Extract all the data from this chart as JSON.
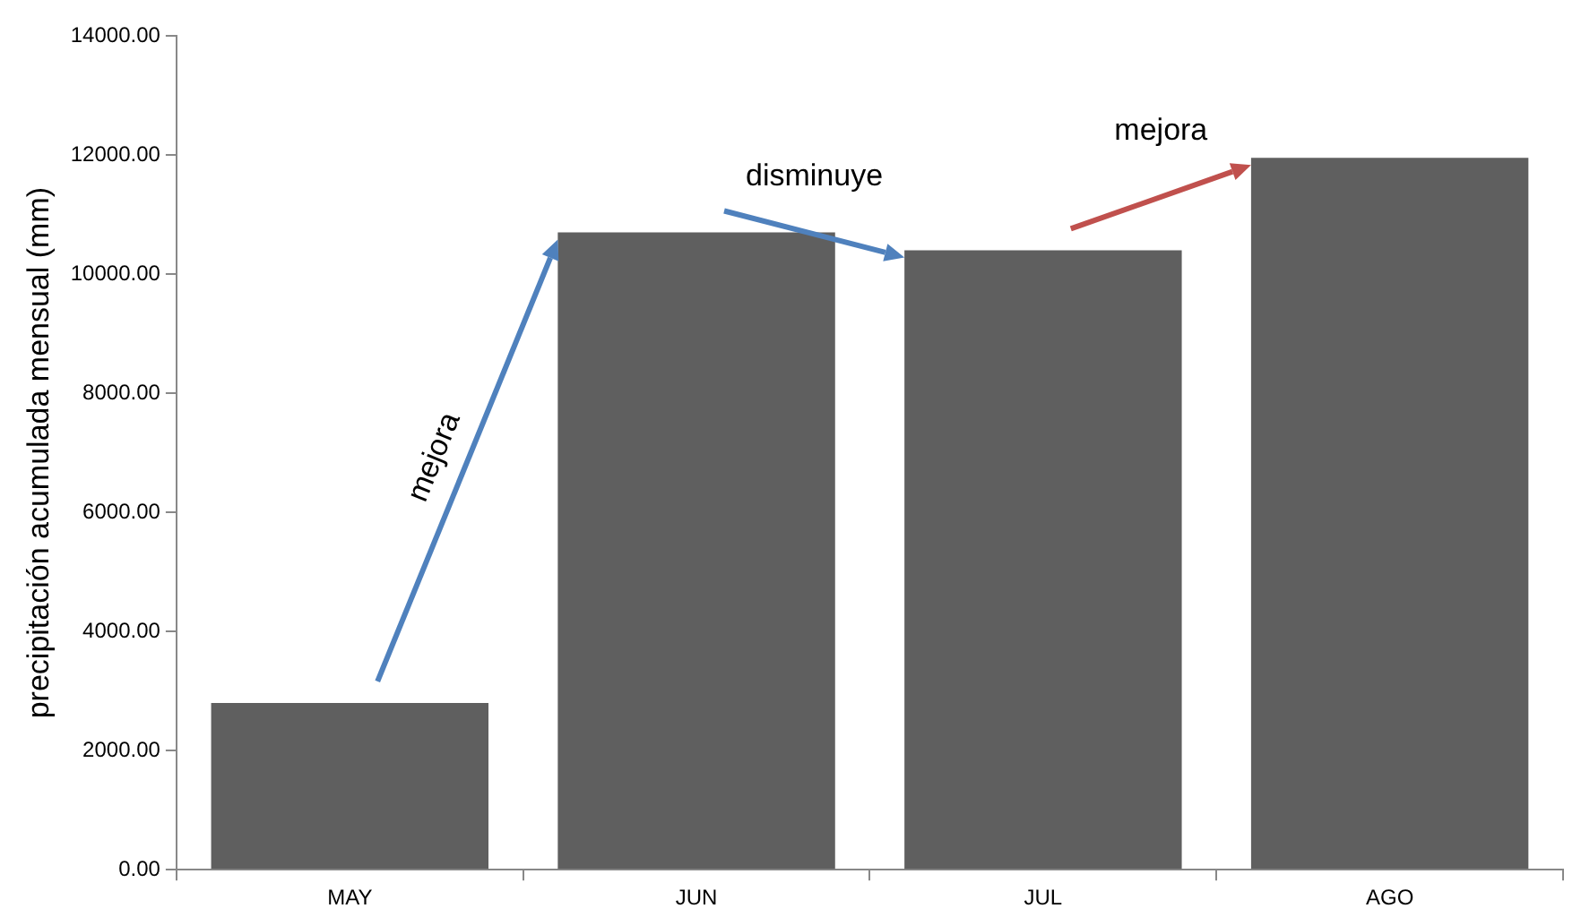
{
  "chart_data": {
    "type": "bar",
    "ylabel": "precipitación acumulada mensual (mm)",
    "categories": [
      "MAY",
      "JUN",
      "JUL",
      "AGO"
    ],
    "values": [
      2800,
      10700,
      10400,
      11950
    ],
    "color": "#5f5f5f",
    "ylim": [
      0,
      14000
    ],
    "yticks": [
      {
        "value": 0,
        "label": "0.00"
      },
      {
        "value": 2000,
        "label": "2000.00"
      },
      {
        "value": 4000,
        "label": "4000.00"
      },
      {
        "value": 6000,
        "label": "6000.00"
      },
      {
        "value": 8000,
        "label": "8000.00"
      },
      {
        "value": 10000,
        "label": "10000.00"
      },
      {
        "value": 12000,
        "label": "12000.00"
      },
      {
        "value": 14000,
        "label": "14000.00"
      }
    ],
    "grid": false,
    "legend": false,
    "annotations": [
      "mejora",
      "disminuye",
      "mejora"
    ]
  }
}
